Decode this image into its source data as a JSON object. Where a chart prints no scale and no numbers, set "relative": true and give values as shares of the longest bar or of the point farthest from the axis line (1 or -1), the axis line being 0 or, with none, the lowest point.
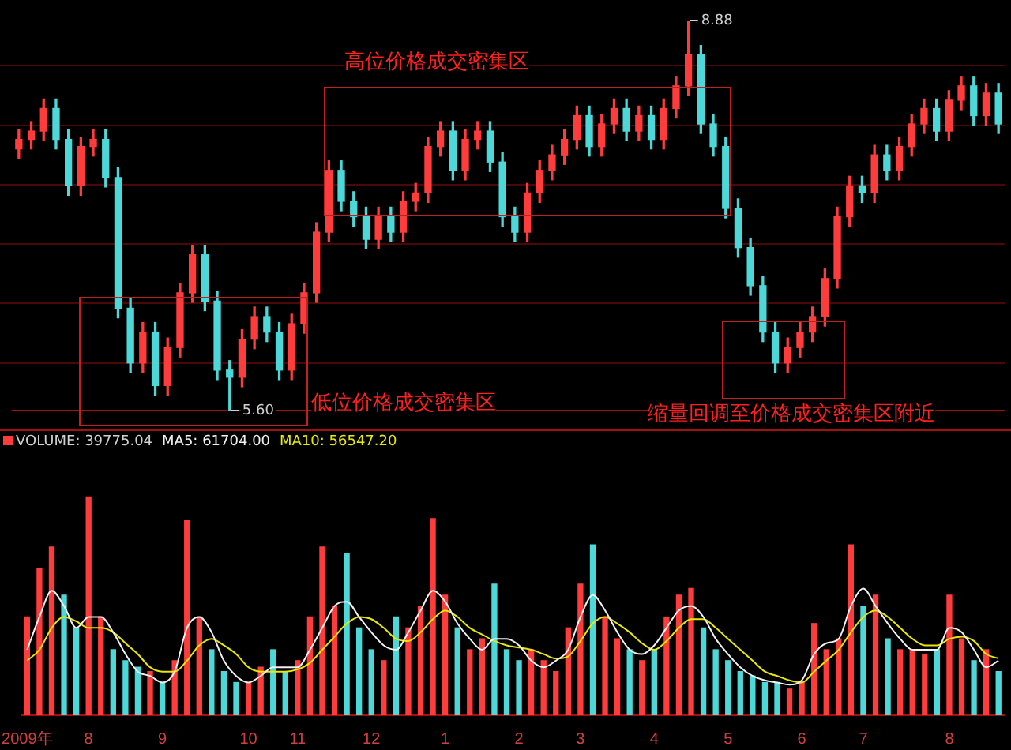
{
  "chart_data": [
    {
      "type": "candlestick",
      "categories": [
        null,
        null,
        null,
        null,
        null,
        null,
        null,
        null,
        null,
        null,
        null,
        null,
        null,
        null,
        null,
        null,
        null,
        null,
        null,
        null,
        null,
        null,
        null,
        null,
        null,
        null,
        null,
        null,
        null,
        null,
        null,
        null,
        null,
        null,
        null,
        null,
        null,
        null,
        null,
        null,
        null,
        null,
        null,
        null,
        null,
        null,
        null,
        null,
        null,
        null,
        null,
        null,
        null,
        null,
        null,
        null,
        null,
        null,
        null,
        null,
        null,
        null,
        null,
        null,
        null,
        null,
        null,
        null,
        null,
        null,
        null,
        null,
        null,
        null,
        null,
        null,
        null,
        null,
        null,
        null
      ],
      "ohlc": [
        [
          7.8,
          7.96,
          7.72,
          7.88
        ],
        [
          7.88,
          8.03,
          7.8,
          7.95
        ],
        [
          7.95,
          8.22,
          7.87,
          8.14
        ],
        [
          8.14,
          8.22,
          7.8,
          7.88
        ],
        [
          7.88,
          7.96,
          7.41,
          7.49
        ],
        [
          7.49,
          7.9,
          7.41,
          7.82
        ],
        [
          7.82,
          7.96,
          7.74,
          7.88
        ],
        [
          7.88,
          7.96,
          7.48,
          7.56
        ],
        [
          7.56,
          7.64,
          6.38,
          6.46
        ],
        [
          6.46,
          6.54,
          5.92,
          6.0
        ],
        [
          6.0,
          6.34,
          5.92,
          6.26
        ],
        [
          6.26,
          6.34,
          5.73,
          5.81
        ],
        [
          5.81,
          6.21,
          5.73,
          6.13
        ],
        [
          6.13,
          6.67,
          6.05,
          6.59
        ],
        [
          6.59,
          6.99,
          6.51,
          6.91
        ],
        [
          6.91,
          6.99,
          6.44,
          6.52
        ],
        [
          6.52,
          6.6,
          5.86,
          5.94
        ],
        [
          5.94,
          6.02,
          5.6,
          5.88
        ],
        [
          5.88,
          6.28,
          5.8,
          6.2
        ],
        [
          6.2,
          6.47,
          6.12,
          6.39
        ],
        [
          6.39,
          6.47,
          6.18,
          6.26
        ],
        [
          6.26,
          6.34,
          5.86,
          5.94
        ],
        [
          5.94,
          6.41,
          5.86,
          6.33
        ],
        [
          6.33,
          6.67,
          6.25,
          6.59
        ],
        [
          6.59,
          7.18,
          6.51,
          7.1
        ],
        [
          7.1,
          7.7,
          7.02,
          7.62
        ],
        [
          7.62,
          7.7,
          7.28,
          7.36
        ],
        [
          7.36,
          7.44,
          7.15,
          7.23
        ],
        [
          7.23,
          7.31,
          6.96,
          7.04
        ],
        [
          7.04,
          7.31,
          6.96,
          7.23
        ],
        [
          7.23,
          7.31,
          7.02,
          7.1
        ],
        [
          7.1,
          7.44,
          7.02,
          7.36
        ],
        [
          7.36,
          7.51,
          7.28,
          7.43
        ],
        [
          7.43,
          7.9,
          7.35,
          7.82
        ],
        [
          7.82,
          8.03,
          7.74,
          7.95
        ],
        [
          7.95,
          8.03,
          7.54,
          7.62
        ],
        [
          7.62,
          7.96,
          7.54,
          7.88
        ],
        [
          7.88,
          8.03,
          7.8,
          7.95
        ],
        [
          7.95,
          8.03,
          7.61,
          7.69
        ],
        [
          7.69,
          7.77,
          7.15,
          7.23
        ],
        [
          7.23,
          7.31,
          7.02,
          7.1
        ],
        [
          7.1,
          7.51,
          7.02,
          7.43
        ],
        [
          7.43,
          7.7,
          7.35,
          7.62
        ],
        [
          7.62,
          7.83,
          7.54,
          7.75
        ],
        [
          7.75,
          7.96,
          7.67,
          7.88
        ],
        [
          7.88,
          8.16,
          7.8,
          8.08
        ],
        [
          8.08,
          8.16,
          7.74,
          7.82
        ],
        [
          7.82,
          8.09,
          7.74,
          8.01
        ],
        [
          8.01,
          8.22,
          7.93,
          8.14
        ],
        [
          8.14,
          8.22,
          7.87,
          7.95
        ],
        [
          7.95,
          8.16,
          7.87,
          8.08
        ],
        [
          8.08,
          8.16,
          7.8,
          7.88
        ],
        [
          7.88,
          8.22,
          7.8,
          8.14
        ],
        [
          8.14,
          8.41,
          8.06,
          8.33
        ],
        [
          8.33,
          8.88,
          8.25,
          8.59
        ],
        [
          8.59,
          8.67,
          7.93,
          8.01
        ],
        [
          8.01,
          8.09,
          7.74,
          7.82
        ],
        [
          7.82,
          7.9,
          7.22,
          7.3
        ],
        [
          7.3,
          7.38,
          6.89,
          6.97
        ],
        [
          6.97,
          7.05,
          6.57,
          6.65
        ],
        [
          6.65,
          6.73,
          6.18,
          6.26
        ],
        [
          6.26,
          6.34,
          5.92,
          6.0
        ],
        [
          6.0,
          6.21,
          5.92,
          6.13
        ],
        [
          6.13,
          6.34,
          6.05,
          6.26
        ],
        [
          6.26,
          6.47,
          6.18,
          6.39
        ],
        [
          6.39,
          6.79,
          6.31,
          6.71
        ],
        [
          6.71,
          7.31,
          6.63,
          7.23
        ],
        [
          7.23,
          7.57,
          7.15,
          7.49
        ],
        [
          7.49,
          7.57,
          7.35,
          7.43
        ],
        [
          7.43,
          7.83,
          7.35,
          7.75
        ],
        [
          7.75,
          7.83,
          7.54,
          7.62
        ],
        [
          7.62,
          7.9,
          7.54,
          7.82
        ],
        [
          7.82,
          8.09,
          7.74,
          8.01
        ],
        [
          8.01,
          8.22,
          7.93,
          8.14
        ],
        [
          8.14,
          8.22,
          7.87,
          7.95
        ],
        [
          7.95,
          8.29,
          7.87,
          8.21
        ],
        [
          8.21,
          8.41,
          8.13,
          8.33
        ],
        [
          8.33,
          8.41,
          8.0,
          8.08
        ],
        [
          8.08,
          8.35,
          8.0,
          8.27
        ],
        [
          8.27,
          8.35,
          7.93,
          8.01
        ]
      ],
      "colors": [
        "#ff3c3c",
        "#ff3c3c",
        "#ff3c3c",
        "#4cd8d8",
        "#4cd8d8",
        "#ff3c3c",
        "#ff3c3c",
        "#4cd8d8",
        "#4cd8d8",
        "#4cd8d8",
        "#ff3c3c",
        "#4cd8d8",
        "#ff3c3c",
        "#ff3c3c",
        "#ff3c3c",
        "#4cd8d8",
        "#4cd8d8",
        "#4cd8d8",
        "#ff3c3c",
        "#ff3c3c",
        "#4cd8d8",
        "#4cd8d8",
        "#ff3c3c",
        "#ff3c3c",
        "#ff3c3c",
        "#ff3c3c",
        "#4cd8d8",
        "#4cd8d8",
        "#4cd8d8",
        "#ff3c3c",
        "#4cd8d8",
        "#ff3c3c",
        "#ff3c3c",
        "#ff3c3c",
        "#ff3c3c",
        "#4cd8d8",
        "#ff3c3c",
        "#ff3c3c",
        "#4cd8d8",
        "#4cd8d8",
        "#4cd8d8",
        "#ff3c3c",
        "#ff3c3c",
        "#ff3c3c",
        "#ff3c3c",
        "#ff3c3c",
        "#4cd8d8",
        "#ff3c3c",
        "#ff3c3c",
        "#4cd8d8",
        "#ff3c3c",
        "#4cd8d8",
        "#ff3c3c",
        "#ff3c3c",
        "#ff3c3c",
        "#4cd8d8",
        "#4cd8d8",
        "#4cd8d8",
        "#4cd8d8",
        "#4cd8d8",
        "#4cd8d8",
        "#4cd8d8",
        "#ff3c3c",
        "#ff3c3c",
        "#ff3c3c",
        "#ff3c3c",
        "#ff3c3c",
        "#ff3c3c",
        "#4cd8d8",
        "#ff3c3c",
        "#4cd8d8",
        "#ff3c3c",
        "#ff3c3c",
        "#ff3c3c",
        "#4cd8d8",
        "#ff3c3c",
        "#ff3c3c",
        "#4cd8d8",
        "#ff3c3c",
        "#4cd8d8"
      ],
      "annotations": [
        {
          "text": "8.88",
          "y": 8.88
        },
        {
          "text": "5.60",
          "y": 5.6
        },
        "高位价格成交密集区",
        "低位价格成交密集区",
        "缩量回调至价格成交密集区附近"
      ],
      "yticks": [
        {
          "value": 6.0,
          "label": null
        },
        {
          "value": 6.5,
          "label": null
        },
        {
          "value": 7.0,
          "label": null
        },
        {
          "value": 7.5,
          "label": null
        },
        {
          "value": 8.0,
          "label": null
        },
        {
          "value": 8.5,
          "label": null
        }
      ],
      "grid": "y",
      "tick_labels": false
    },
    {
      "type": "bar",
      "relative": true,
      "categories": [
        "2009年",
        null,
        null,
        null,
        null,
        "8",
        null,
        null,
        null,
        null,
        null,
        "9",
        null,
        null,
        null,
        null,
        null,
        null,
        "10",
        null,
        null,
        null,
        "11",
        null,
        null,
        null,
        null,
        null,
        "12",
        null,
        null,
        null,
        null,
        null,
        "1",
        null,
        null,
        null,
        null,
        null,
        "2",
        null,
        null,
        null,
        null,
        "3",
        null,
        null,
        null,
        null,
        null,
        "4",
        null,
        null,
        null,
        null,
        null,
        "5",
        null,
        null,
        null,
        null,
        null,
        "6",
        null,
        null,
        null,
        null,
        "7",
        null,
        null,
        null,
        null,
        null,
        null,
        "8",
        null,
        null,
        null,
        null
      ],
      "series": [
        {
          "name": "VOLUME: 39775.04",
          "values": [
            0.45,
            0.67,
            0.77,
            0.55,
            0.4,
            1.0,
            0.45,
            0.3,
            0.25,
            0.22,
            0.2,
            0.15,
            0.25,
            0.89,
            0.45,
            0.3,
            0.2,
            0.15,
            0.15,
            0.22,
            0.3,
            0.2,
            0.25,
            0.45,
            0.77,
            0.5,
            0.74,
            0.4,
            0.3,
            0.25,
            0.45,
            0.4,
            0.5,
            0.9,
            0.55,
            0.4,
            0.3,
            0.35,
            0.6,
            0.3,
            0.25,
            0.3,
            0.25,
            0.2,
            0.4,
            0.6,
            0.78,
            0.45,
            0.35,
            0.3,
            0.25,
            0.3,
            0.45,
            0.55,
            0.58,
            0.4,
            0.3,
            0.25,
            0.2,
            0.18,
            0.15,
            0.15,
            0.12,
            0.15,
            0.42,
            0.3,
            0.35,
            0.78,
            0.5,
            0.55,
            0.35,
            0.3,
            0.3,
            0.28,
            0.3,
            0.55,
            0.35,
            0.25,
            0.3,
            0.2
          ],
          "colors": [
            "#ff3c3c",
            "#ff3c3c",
            "#ff3c3c",
            "#4cd8d8",
            "#4cd8d8",
            "#ff3c3c",
            "#ff3c3c",
            "#4cd8d8",
            "#4cd8d8",
            "#4cd8d8",
            "#ff3c3c",
            "#4cd8d8",
            "#ff3c3c",
            "#ff3c3c",
            "#ff3c3c",
            "#4cd8d8",
            "#4cd8d8",
            "#4cd8d8",
            "#ff3c3c",
            "#ff3c3c",
            "#4cd8d8",
            "#4cd8d8",
            "#ff3c3c",
            "#ff3c3c",
            "#ff3c3c",
            "#ff3c3c",
            "#4cd8d8",
            "#4cd8d8",
            "#4cd8d8",
            "#ff3c3c",
            "#4cd8d8",
            "#ff3c3c",
            "#ff3c3c",
            "#ff3c3c",
            "#ff3c3c",
            "#4cd8d8",
            "#ff3c3c",
            "#ff3c3c",
            "#4cd8d8",
            "#4cd8d8",
            "#4cd8d8",
            "#ff3c3c",
            "#ff3c3c",
            "#ff3c3c",
            "#ff3c3c",
            "#ff3c3c",
            "#4cd8d8",
            "#ff3c3c",
            "#ff3c3c",
            "#4cd8d8",
            "#ff3c3c",
            "#4cd8d8",
            "#ff3c3c",
            "#ff3c3c",
            "#ff3c3c",
            "#4cd8d8",
            "#4cd8d8",
            "#4cd8d8",
            "#4cd8d8",
            "#4cd8d8",
            "#4cd8d8",
            "#4cd8d8",
            "#ff3c3c",
            "#ff3c3c",
            "#ff3c3c",
            "#ff3c3c",
            "#ff3c3c",
            "#ff3c3c",
            "#4cd8d8",
            "#ff3c3c",
            "#4cd8d8",
            "#ff3c3c",
            "#ff3c3c",
            "#ff3c3c",
            "#4cd8d8",
            "#ff3c3c",
            "#ff3c3c",
            "#4cd8d8",
            "#ff3c3c",
            "#4cd8d8"
          ]
        },
        {
          "name": "MA5: 61704.00",
          "type": "line",
          "color": "#f0f0f0",
          "values": [
            0.3,
            0.45,
            0.57,
            0.5,
            0.4,
            0.45,
            0.45,
            0.38,
            0.28,
            0.2,
            0.18,
            0.15,
            0.2,
            0.4,
            0.45,
            0.38,
            0.25,
            0.18,
            0.15,
            0.18,
            0.22,
            0.22,
            0.22,
            0.3,
            0.4,
            0.5,
            0.52,
            0.45,
            0.38,
            0.32,
            0.3,
            0.38,
            0.48,
            0.57,
            0.52,
            0.42,
            0.35,
            0.3,
            0.35,
            0.35,
            0.32,
            0.25,
            0.22,
            0.25,
            0.3,
            0.45,
            0.55,
            0.48,
            0.38,
            0.3,
            0.28,
            0.32,
            0.4,
            0.48,
            0.5,
            0.45,
            0.35,
            0.28,
            0.22,
            0.18,
            0.16,
            0.15,
            0.14,
            0.16,
            0.28,
            0.33,
            0.35,
            0.5,
            0.58,
            0.5,
            0.42,
            0.35,
            0.3,
            0.3,
            0.3,
            0.4,
            0.38,
            0.3,
            0.22,
            0.25
          ]
        },
        {
          "name": "MA10: 56547.20",
          "type": "line",
          "color": "#e8e800",
          "values": [
            0.25,
            0.3,
            0.4,
            0.45,
            0.43,
            0.4,
            0.4,
            0.38,
            0.33,
            0.28,
            0.22,
            0.2,
            0.2,
            0.25,
            0.32,
            0.35,
            0.32,
            0.28,
            0.22,
            0.2,
            0.2,
            0.2,
            0.21,
            0.24,
            0.3,
            0.36,
            0.42,
            0.45,
            0.44,
            0.4,
            0.35,
            0.34,
            0.38,
            0.44,
            0.48,
            0.45,
            0.4,
            0.37,
            0.34,
            0.32,
            0.31,
            0.3,
            0.28,
            0.26,
            0.27,
            0.34,
            0.42,
            0.45,
            0.42,
            0.38,
            0.33,
            0.3,
            0.34,
            0.4,
            0.44,
            0.44,
            0.4,
            0.35,
            0.3,
            0.25,
            0.2,
            0.18,
            0.16,
            0.15,
            0.2,
            0.25,
            0.3,
            0.38,
            0.45,
            0.48,
            0.45,
            0.4,
            0.35,
            0.32,
            0.32,
            0.35,
            0.36,
            0.34,
            0.28,
            0.26
          ]
        }
      ],
      "legend": "top left",
      "tick_labels": "x"
    }
  ]
}
